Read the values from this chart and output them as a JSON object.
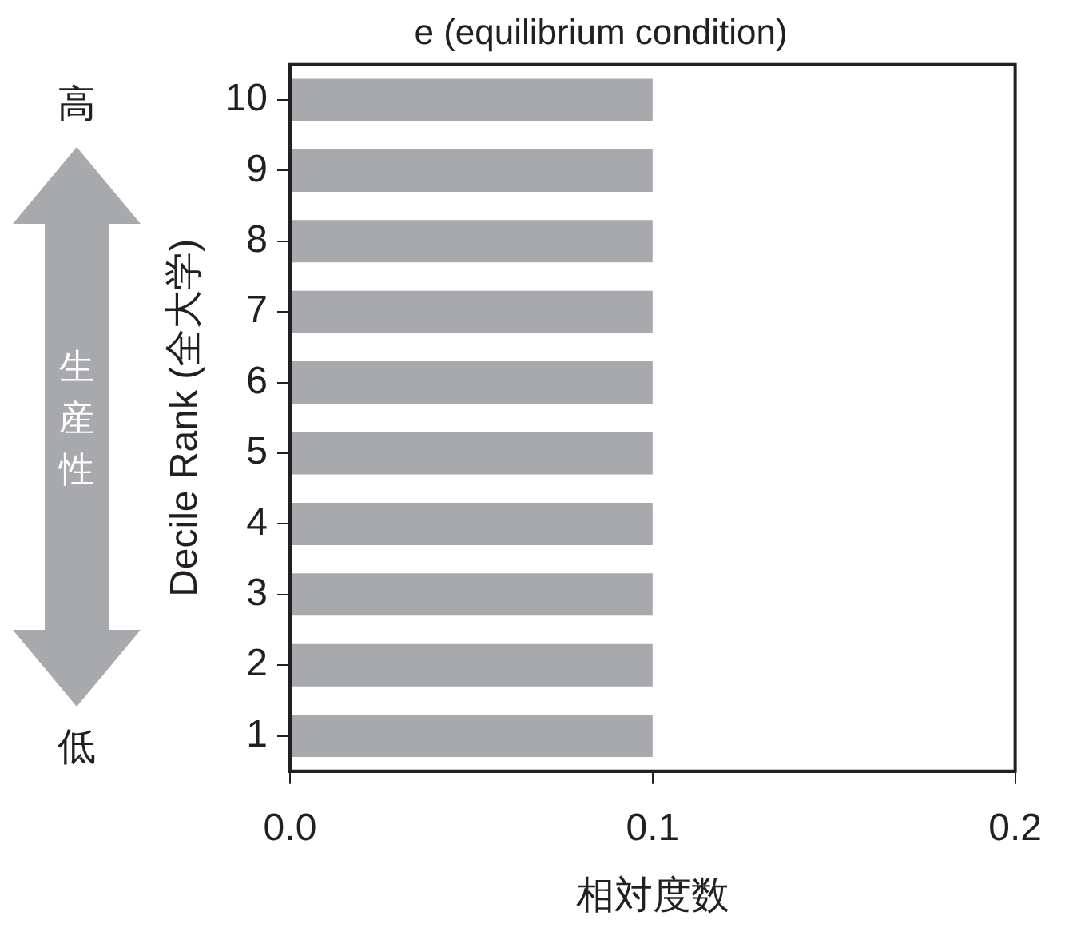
{
  "chart_data": {
    "type": "bar",
    "orientation": "horizontal",
    "title": "e (equilibrium condition)",
    "xlabel": "相対度数",
    "ylabel": "Decile Rank (全大学)",
    "categories": [
      "10",
      "9",
      "8",
      "7",
      "6",
      "5",
      "4",
      "3",
      "2",
      "1"
    ],
    "values": [
      0.1,
      0.1,
      0.1,
      0.1,
      0.1,
      0.1,
      0.1,
      0.1,
      0.1,
      0.1
    ],
    "color": "#a7a9ac",
    "xlim": [
      0,
      0.2
    ],
    "xticks": [
      {
        "value": 0,
        "label": "0.0"
      },
      {
        "value": 0.1,
        "label": "0.1"
      },
      {
        "value": 0.2,
        "label": "0.2"
      }
    ],
    "grid": false,
    "annotations": [
      "高",
      "生産性",
      "低"
    ]
  }
}
